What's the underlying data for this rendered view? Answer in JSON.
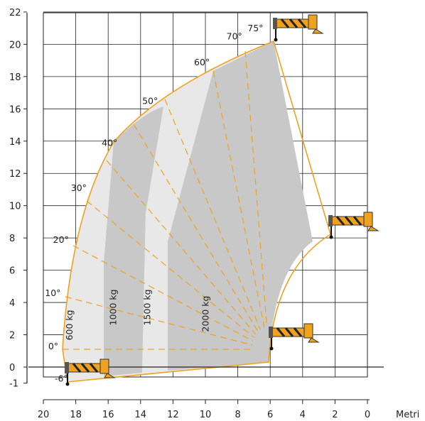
{
  "chart_data": {
    "type": "load-chart",
    "x_axis": {
      "ticks": [
        20,
        18,
        16,
        14,
        12,
        10,
        8,
        6,
        4,
        2,
        0
      ],
      "unit_label": "Metri",
      "range": [
        20,
        0
      ]
    },
    "y_axis": {
      "ticks": [
        22,
        20,
        18,
        16,
        14,
        12,
        10,
        8,
        6,
        4,
        2,
        0,
        -1
      ],
      "range": [
        -1,
        22
      ]
    },
    "grid": true,
    "angle_labels": [
      {
        "text": "-6°",
        "x": 19.3,
        "y": -0.9
      },
      {
        "text": "0°",
        "x": 19.7,
        "y": 1.1
      },
      {
        "text": "10°",
        "x": 19.9,
        "y": 4.4
      },
      {
        "text": "20°",
        "x": 19.4,
        "y": 7.7
      },
      {
        "text": "30°",
        "x": 18.3,
        "y": 10.9
      },
      {
        "text": "40°",
        "x": 16.4,
        "y": 13.7
      },
      {
        "text": "50°",
        "x": 13.9,
        "y": 16.3
      },
      {
        "text": "60°",
        "x": 10.7,
        "y": 18.7
      },
      {
        "text": "70°",
        "x": 8.7,
        "y": 20.3
      },
      {
        "text": "75°",
        "x": 7.4,
        "y": 20.8
      }
    ],
    "load_zones": [
      {
        "label": "600 kg",
        "x": 18.2,
        "y": 2.6
      },
      {
        "label": "1000 kg",
        "x": 15.5,
        "y": 3.7
      },
      {
        "label": "1500 kg",
        "x": 13.4,
        "y": 3.7
      },
      {
        "label": "2000 kg",
        "x": 9.8,
        "y": 3.3
      }
    ]
  }
}
